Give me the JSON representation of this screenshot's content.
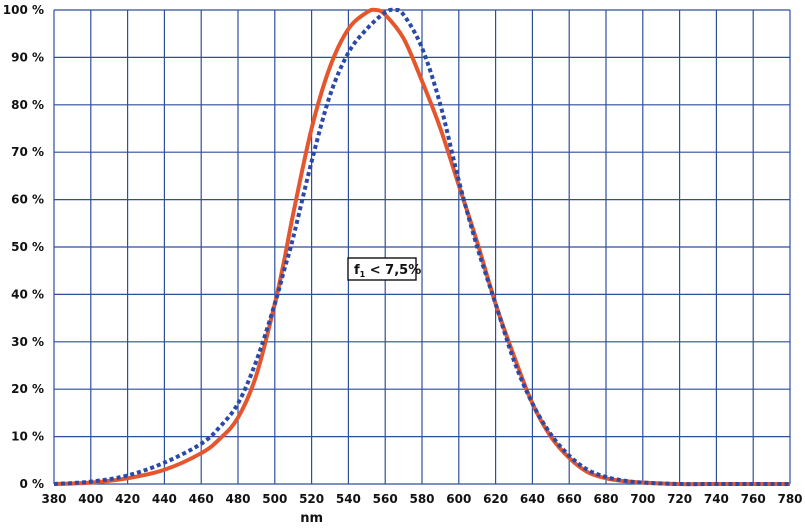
{
  "chart_data": {
    "type": "line",
    "xlabel": "nm",
    "ylabel": "",
    "xlim": [
      380,
      780
    ],
    "ylim": [
      0,
      100
    ],
    "x_ticks": [
      380,
      400,
      420,
      440,
      460,
      480,
      500,
      520,
      540,
      560,
      580,
      600,
      620,
      640,
      660,
      680,
      700,
      720,
      740,
      760,
      780
    ],
    "y_ticks": [
      0,
      10,
      20,
      30,
      40,
      50,
      60,
      70,
      80,
      90,
      100
    ],
    "y_tick_suffix": " %",
    "grid": true,
    "annotation": {
      "text": "f",
      "subscript": "1",
      "rest": " < 7,5%"
    },
    "colors": {
      "grid": "#2d4f9e",
      "measured": "#e4572e",
      "reference": "#2b4aa8"
    },
    "series": [
      {
        "style": "solid",
        "x": [
          380,
          400,
          420,
          440,
          460,
          470,
          480,
          490,
          500,
          505,
          510,
          520,
          530,
          540,
          550,
          555,
          560,
          570,
          580,
          590,
          600,
          610,
          620,
          630,
          640,
          650,
          660,
          670,
          680,
          690,
          700,
          720,
          740,
          760,
          780
        ],
        "values": [
          0,
          0.3,
          1.2,
          3,
          6.5,
          9.5,
          14,
          23,
          38,
          47,
          57,
          75,
          88,
          96,
          99.5,
          100,
          99,
          94,
          85,
          75,
          63,
          51,
          38,
          27,
          17,
          10,
          5.5,
          2.5,
          1.2,
          0.6,
          0.3,
          0,
          0,
          0,
          0
        ]
      },
      {
        "style": "dotted",
        "x": [
          380,
          400,
          420,
          440,
          460,
          470,
          480,
          490,
          500,
          505,
          510,
          520,
          530,
          540,
          550,
          560,
          565,
          570,
          580,
          590,
          600,
          610,
          620,
          630,
          640,
          650,
          660,
          670,
          680,
          690,
          700,
          720,
          740,
          760,
          780
        ],
        "values": [
          0,
          0.5,
          1.8,
          4.5,
          8.5,
          12,
          17,
          26,
          38,
          45,
          52,
          68,
          82,
          91,
          96,
          99.5,
          100,
          99,
          92,
          80,
          64,
          50,
          38,
          26,
          17,
          10.5,
          6,
          3,
          1.5,
          0.7,
          0.3,
          0,
          0,
          0,
          0
        ]
      }
    ]
  }
}
